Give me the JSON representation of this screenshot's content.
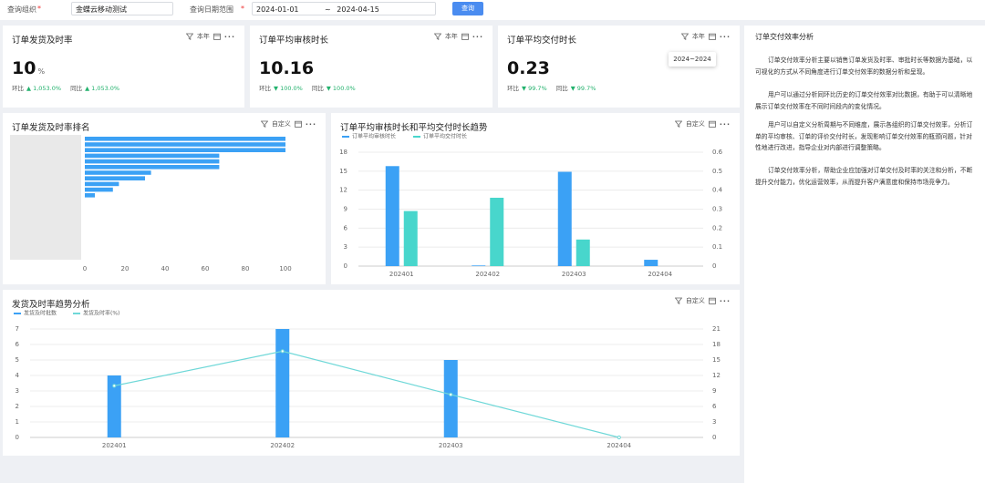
{
  "filters": {
    "org_label": "查询组织",
    "org_required": "*",
    "org_value": "金蝶云移动测试",
    "date_label": "查询日期范围",
    "date_required": "*",
    "date_start": "2024-01-01",
    "date_sep": "~",
    "date_end": "2024-04-15",
    "button": "查询"
  },
  "kpis": [
    {
      "title": "订单发货及时率",
      "period": "本年",
      "value": "10",
      "unit": "%",
      "mom_label": "环比",
      "mom": "▲ 1,053.0%",
      "yoy_label": "同比",
      "yoy": "▲ 1,053.0%"
    },
    {
      "title": "订单平均审核时长",
      "period": "本年",
      "value": "10.16",
      "mom_label": "环比",
      "mom": "▼ 100.0%",
      "yoy_label": "同比",
      "yoy": "▼ 100.0%"
    },
    {
      "title": "订单平均交付时长",
      "period": "本年",
      "value": "0.23",
      "mom_label": "环比",
      "mom": "▼ 99.7%",
      "yoy_label": "同比",
      "yoy": "▼ 99.7%"
    }
  ],
  "tooltip": "2024~2024",
  "panel": {
    "title": "订单交付效率分析",
    "paragraphs": [
      "订单交付效率分析主要以销售订单发货及时率、审批时长等数据为基础，以可视化的方式从不同角度进行订单交付效率的数据分析和呈现。",
      "用户可以通过分析同环比历史的订单交付效率对比数据，有助于可以清晰地展示订单交付效率在不同时间段内的变化情况。",
      "用户可以自定义分析周期与不同维度，展示各组织的订单交付效率，分析订单的平均审核、订单的评价交付时长，发现影响订单交付效率的瓶颈问题，针对性地进行改进，指导企业对内部进行调整策略。",
      "订单交付效率分析，帮助企业应加强对订单交付及时率的关注和分析，不断提升交付能力，优化运营效率，从而提升客户满意度和保持市场竞争力。"
    ]
  },
  "chart_data": [
    {
      "type": "barh",
      "title": "订单发货及时率排名",
      "period": "自定义",
      "categories": [
        null,
        null,
        null,
        null,
        null,
        null,
        null,
        null,
        null,
        null,
        null
      ],
      "values": [
        100,
        100,
        100,
        67,
        67,
        67,
        33,
        30,
        17,
        14,
        5
      ],
      "color": "#3ba1f5",
      "xlim": [
        0,
        100
      ],
      "xticks": [
        0,
        20,
        40,
        60,
        80,
        100
      ],
      "grid": false
    },
    {
      "type": "combo",
      "title": "订单平均审核时长和平均交付时长趋势",
      "period": "自定义",
      "categories": [
        "202401",
        "202402",
        "202403",
        "202404"
      ],
      "series": [
        {
          "name": "订单平均审核时长",
          "type": "bar",
          "color": "#3ba1f5",
          "values": [
            15.8,
            0.1,
            14.9,
            1.0
          ]
        },
        {
          "name": "订单平均交付时长",
          "type": "bar",
          "color": "#48d6cc",
          "axis": "y2",
          "values": [
            0.29,
            0.36,
            0.14,
            0
          ]
        }
      ],
      "ylim": [
        0,
        18
      ],
      "yticks": [
        0,
        3,
        6,
        9,
        12,
        15,
        18
      ],
      "y2lim": [
        0,
        0.6
      ],
      "y2ticks": [
        0,
        0.1,
        0.2,
        0.3,
        0.4,
        0.5,
        0.6
      ],
      "grid": true
    },
    {
      "type": "combo",
      "title": "发货及时率趋势分析",
      "period": "自定义",
      "categories": [
        "202401",
        "202402",
        "202403",
        "202404"
      ],
      "series": [
        {
          "name": "发货及时批数",
          "type": "bar",
          "color": "#3ba1f5",
          "values": [
            4,
            7,
            5,
            0
          ]
        },
        {
          "name": "发货及时率(%)",
          "type": "line",
          "color": "#6fd8d8",
          "axis": "y2",
          "values": [
            10,
            16.7,
            8.3,
            0
          ]
        }
      ],
      "ylim": [
        0,
        7
      ],
      "yticks": [
        0,
        1,
        2,
        3,
        4,
        5,
        6,
        7
      ],
      "y2lim": [
        0,
        21
      ],
      "y2ticks": [
        0,
        3,
        6,
        9,
        12,
        15,
        18,
        21
      ],
      "grid": true
    }
  ]
}
